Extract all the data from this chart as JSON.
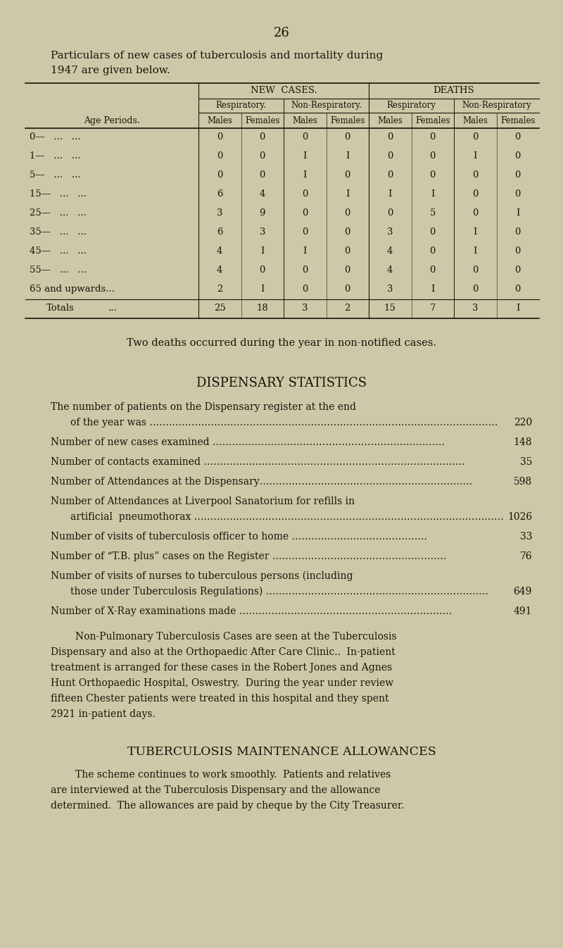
{
  "bg_color": "#cfc8a8",
  "text_color": "#1a1208",
  "page_number": "26",
  "intro_line1": "Particulars of new cases of tuberculosis and mortality during",
  "intro_line2": "1947 are given below.",
  "table": {
    "rows": [
      [
        "0—   ...   ...",
        "0",
        "0",
        "0",
        "0",
        "0",
        "0",
        "0",
        "0"
      ],
      [
        "1—   ...   ...",
        "0",
        "0",
        "I",
        "I",
        "0",
        "0",
        "I",
        "0"
      ],
      [
        "5—   ...   ...",
        "0",
        "0",
        "I",
        "0",
        "0",
        "0",
        "0",
        "0"
      ],
      [
        "15—   ...   ...",
        "6",
        "4",
        "0",
        "I",
        "I",
        "I",
        "0",
        "0"
      ],
      [
        "25—   ...   ...",
        "3",
        "9",
        "0",
        "0",
        "0",
        "5",
        "0",
        "I"
      ],
      [
        "35—   ...   ...",
        "6",
        "3",
        "0",
        "0",
        "3",
        "0",
        "I",
        "0"
      ],
      [
        "45—   ...   ...",
        "4",
        "I",
        "I",
        "0",
        "4",
        "0",
        "I",
        "0"
      ],
      [
        "55—   ...   ...",
        "4",
        "0",
        "0",
        "0",
        "4",
        "0",
        "0",
        "0"
      ],
      [
        "65 and upwards...",
        "2",
        "I",
        "0",
        "0",
        "3",
        "I",
        "0",
        "0"
      ]
    ],
    "totals_row": [
      "25",
      "18",
      "3",
      "2",
      "15",
      "7",
      "3",
      "I"
    ]
  },
  "note_text": "Two deaths occurred during the year in non-notified cases.",
  "dispensary_title": "DISPENSARY STATISTICS",
  "dispensary_items": [
    {
      "line1": "The number of patients on the Dispensary register at the end",
      "line2": "of the year was ………………………………………………………………………………………………",
      "value": "220",
      "indent2": true
    },
    {
      "line1": "Number of new cases examined ………………………………………………………………",
      "line2": null,
      "value": "148",
      "indent2": false
    },
    {
      "line1": "Number of contacts examined ………………………………………………………………………",
      "line2": null,
      "value": "35",
      "indent2": false
    },
    {
      "line1": "Number of Attendances at the Dispensary…………………………………………………………",
      "line2": null,
      "value": "598",
      "indent2": false
    },
    {
      "line1": "Number of Attendances at Liverpool Sanatorium for refills in",
      "line2": "artificial  pneumothorax ……………………………………………………………………………………",
      "value": "1026",
      "indent2": true
    },
    {
      "line1": "Number of visits of tuberculosis officer to home ……………………………………",
      "line2": null,
      "value": "33",
      "indent2": false
    },
    {
      "line1": "Number of “T.B. plus” cases on the Register ………………………………………………",
      "line2": null,
      "value": "76",
      "indent2": false
    },
    {
      "line1": "Number of visits of nurses to tuberculous persons (including",
      "line2": "those under Tuberculosis Regulations) ……………………………………………………………",
      "value": "649",
      "indent2": true
    },
    {
      "line1": "Number of X-Ray examinations made …………………………………………………………",
      "line2": null,
      "value": "491",
      "indent2": false
    }
  ],
  "para1_lines": [
    "        Non-Pulmonary Tuberculosis Cases are seen at the Tuberculosis",
    "Dispensary and also at the Orthopaedic After Care Clinic..  In-patient",
    "treatment is arranged for these cases in the Robert Jones and Agnes",
    "Hunt Orthopaedic Hospital, Oswestry.  During the year under review",
    "fifteen Chester patients were treated in this hospital and they spent",
    "2921 in-patient days."
  ],
  "allowances_title": "TUBERCULOSIS MAINTENANCE ALLOWANCES",
  "para2_lines": [
    "        The scheme continues to work smoothly.  Patients and relatives",
    "are interviewed at the Tuberculosis Dispensary and the allowance",
    "determined.  The allowances are paid by cheque by the City Treasurer."
  ]
}
